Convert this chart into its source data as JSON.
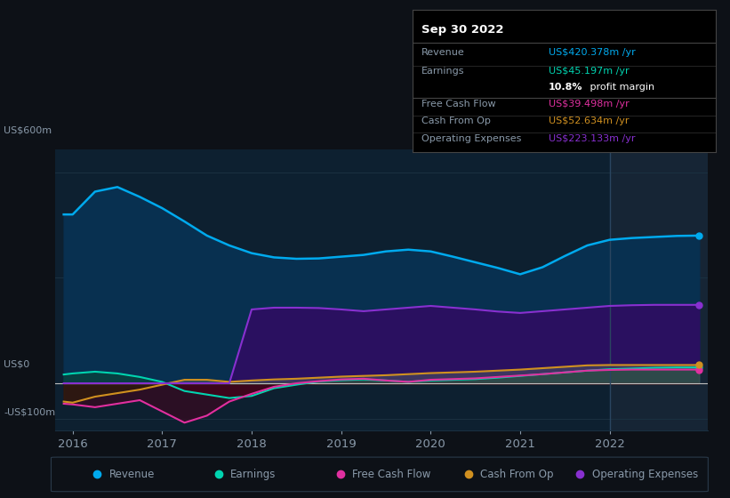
{
  "bg_color": "#0d1117",
  "plot_bg_color": "#0d2030",
  "text_color": "#8a9aaa",
  "title_text_color": "#ffffff",
  "grid_color": "#1a3040",
  "ylabel_top": "US$600m",
  "ylabel_zero": "US$0",
  "ylabel_neg": "-US$100m",
  "years": [
    2015.9,
    2016.0,
    2016.25,
    2016.5,
    2016.75,
    2017.0,
    2017.25,
    2017.5,
    2017.75,
    2018.0,
    2018.25,
    2018.5,
    2018.75,
    2019.0,
    2019.25,
    2019.5,
    2019.75,
    2020.0,
    2020.25,
    2020.5,
    2020.75,
    2021.0,
    2021.25,
    2021.5,
    2021.75,
    2022.0,
    2022.25,
    2022.5,
    2022.75,
    2023.0
  ],
  "revenue": [
    480,
    480,
    545,
    558,
    530,
    498,
    460,
    420,
    392,
    370,
    358,
    354,
    355,
    360,
    365,
    375,
    380,
    375,
    360,
    344,
    328,
    310,
    330,
    362,
    392,
    408,
    413,
    416,
    419,
    420
  ],
  "earnings": [
    25,
    28,
    33,
    28,
    18,
    4,
    -22,
    -32,
    -42,
    -36,
    -14,
    -4,
    5,
    9,
    11,
    8,
    4,
    8,
    10,
    12,
    16,
    21,
    26,
    31,
    36,
    40,
    42,
    44,
    45,
    45
  ],
  "free_cash_flow": [
    -58,
    -60,
    -68,
    -58,
    -48,
    -80,
    -112,
    -92,
    -52,
    -30,
    -10,
    0,
    6,
    11,
    13,
    8,
    4,
    10,
    12,
    14,
    18,
    22,
    26,
    31,
    36,
    38,
    39,
    39,
    39,
    39
  ],
  "cash_from_op": [
    -52,
    -55,
    -38,
    -28,
    -18,
    -4,
    10,
    10,
    4,
    8,
    11,
    13,
    16,
    19,
    21,
    23,
    26,
    29,
    31,
    33,
    36,
    39,
    43,
    47,
    51,
    52,
    52,
    52,
    52,
    52
  ],
  "operating_expenses": [
    0,
    0,
    0,
    0,
    0,
    0,
    0,
    0,
    0,
    210,
    215,
    215,
    214,
    210,
    205,
    210,
    215,
    220,
    215,
    210,
    204,
    200,
    205,
    210,
    215,
    220,
    222,
    223,
    223,
    223
  ],
  "revenue_color": "#00aaee",
  "earnings_color": "#00d4b0",
  "fcf_color": "#e030a0",
  "cashop_color": "#d09020",
  "opex_color": "#8830d0",
  "revenue_fill": "#083050",
  "opex_fill": "#2a1060",
  "earnings_fill_pos": "#084040",
  "earnings_fill_neg": "#500010",
  "xlim": [
    2015.8,
    2023.1
  ],
  "ylim": [
    -135,
    665
  ],
  "xticks": [
    2016,
    2017,
    2018,
    2019,
    2020,
    2021,
    2022
  ],
  "highlight_x_start": 2022.0,
  "highlight_x_end": 2023.1,
  "highlight_color": "#162535",
  "tooltip_date": "Sep 30 2022",
  "tooltip_text_color": "#8a9aaa",
  "tooltip_value_rows": [
    {
      "label": "Revenue",
      "value": "US$420.378m /yr",
      "color": "#00aaee"
    },
    {
      "label": "Earnings",
      "value": "US$45.197m /yr",
      "color": "#00d4b0"
    },
    {
      "label": "",
      "value": "",
      "color": "#ffffff",
      "bold": "10.8%",
      "rest": " profit margin"
    },
    {
      "label": "Free Cash Flow",
      "value": "US$39.498m /yr",
      "color": "#e030a0"
    },
    {
      "label": "Cash From Op",
      "value": "US$52.634m /yr",
      "color": "#d09020"
    },
    {
      "label": "Operating Expenses",
      "value": "US$223.133m /yr",
      "color": "#8830d0"
    }
  ],
  "legend_items": [
    {
      "label": "Revenue",
      "color": "#00aaee"
    },
    {
      "label": "Earnings",
      "color": "#00d4b0"
    },
    {
      "label": "Free Cash Flow",
      "color": "#e030a0"
    },
    {
      "label": "Cash From Op",
      "color": "#d09020"
    },
    {
      "label": "Operating Expenses",
      "color": "#8830d0"
    }
  ]
}
